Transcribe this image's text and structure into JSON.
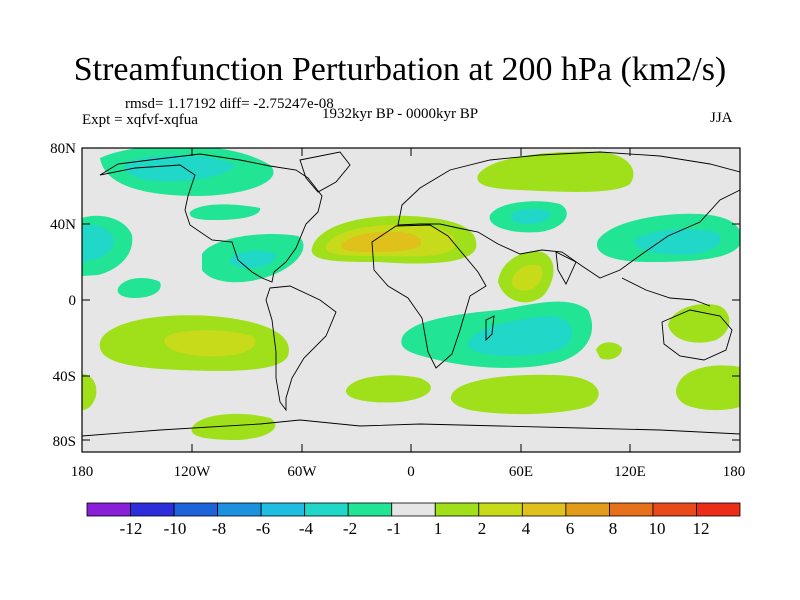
{
  "title": "Streamfunction Perturbation at 200 hPa (km2/s)",
  "stats": "rmsd= 1.17192 diff= -2.75247e-08",
  "experiment": "Expt = xqfvf-xqfua",
  "period": "1932kyr BP - 0000kyr BP",
  "season": "JJA",
  "y_ticks": [
    "80N",
    "40N",
    "0",
    "40S",
    "80S"
  ],
  "x_ticks": [
    "180",
    "120W",
    "60W",
    "0",
    "60E",
    "120E",
    "180"
  ],
  "colorbar": {
    "colors": [
      "#8a1fd8",
      "#2d2ddb",
      "#1f63db",
      "#1c92de",
      "#1fbde0",
      "#20d7c8",
      "#22e495",
      "#e6e6e6",
      "#9fe01b",
      "#c8db1a",
      "#e0c01a",
      "#e39b1a",
      "#e6701b",
      "#e84a1b",
      "#ea2c18"
    ],
    "labels": [
      "-12",
      "-10",
      "-8",
      "-6",
      "-4",
      "-2",
      "-1",
      "1",
      "2",
      "4",
      "6",
      "8",
      "10",
      "12"
    ]
  },
  "map": {
    "background": "#e6e6e6",
    "fields": [
      {
        "name": "field-n-pacific",
        "color": "#22e495"
      },
      {
        "name": "field-n-pacific-core",
        "color": "#20d7c8"
      },
      {
        "name": "field-e-pacific-west",
        "color": "#22e495"
      },
      {
        "name": "field-e-pacific-west-core",
        "color": "#20d7c8"
      },
      {
        "name": "field-n-atlantic",
        "color": "#22e495"
      },
      {
        "name": "field-gulf-atlantic",
        "color": "#22e495"
      },
      {
        "name": "field-gulf-atlantic-core",
        "color": "#20d7c8"
      },
      {
        "name": "field-n-atlantic-ridge",
        "color": "#9fe01b"
      },
      {
        "name": "field-n-atlantic-ridge-inner",
        "color": "#c8db1a"
      },
      {
        "name": "field-n-atlantic-ridge-core",
        "color": "#e0c01a"
      },
      {
        "name": "field-arctic-eurasia",
        "color": "#9fe01b"
      },
      {
        "name": "field-central-asia",
        "color": "#22e495"
      },
      {
        "name": "field-central-asia-core",
        "color": "#20d7c8"
      },
      {
        "name": "field-nw-pacific",
        "color": "#22e495"
      },
      {
        "name": "field-nw-pacific-core",
        "color": "#20d7c8"
      },
      {
        "name": "field-east-africa",
        "color": "#9fe01b"
      },
      {
        "name": "field-east-africa-core",
        "color": "#c8db1a"
      },
      {
        "name": "field-trop-pacific",
        "color": "#22e495"
      },
      {
        "name": "field-s-pacific",
        "color": "#9fe01b"
      },
      {
        "name": "field-s-pacific-core",
        "color": "#c8db1a"
      },
      {
        "name": "field-s-indian",
        "color": "#22e495"
      },
      {
        "name": "field-s-indian-core",
        "color": "#20d7c8"
      },
      {
        "name": "field-australia",
        "color": "#9fe01b"
      },
      {
        "name": "field-sw-indian",
        "color": "#9fe01b"
      },
      {
        "name": "field-s-atlantic",
        "color": "#9fe01b"
      },
      {
        "name": "field-s-pacific-west",
        "color": "#9fe01b"
      },
      {
        "name": "field-antarctic-pacific",
        "color": "#9fe01b"
      },
      {
        "name": "field-se-pacific",
        "color": "#9fe01b"
      },
      {
        "name": "field-s-far-west",
        "color": "#9fe01b"
      }
    ]
  }
}
